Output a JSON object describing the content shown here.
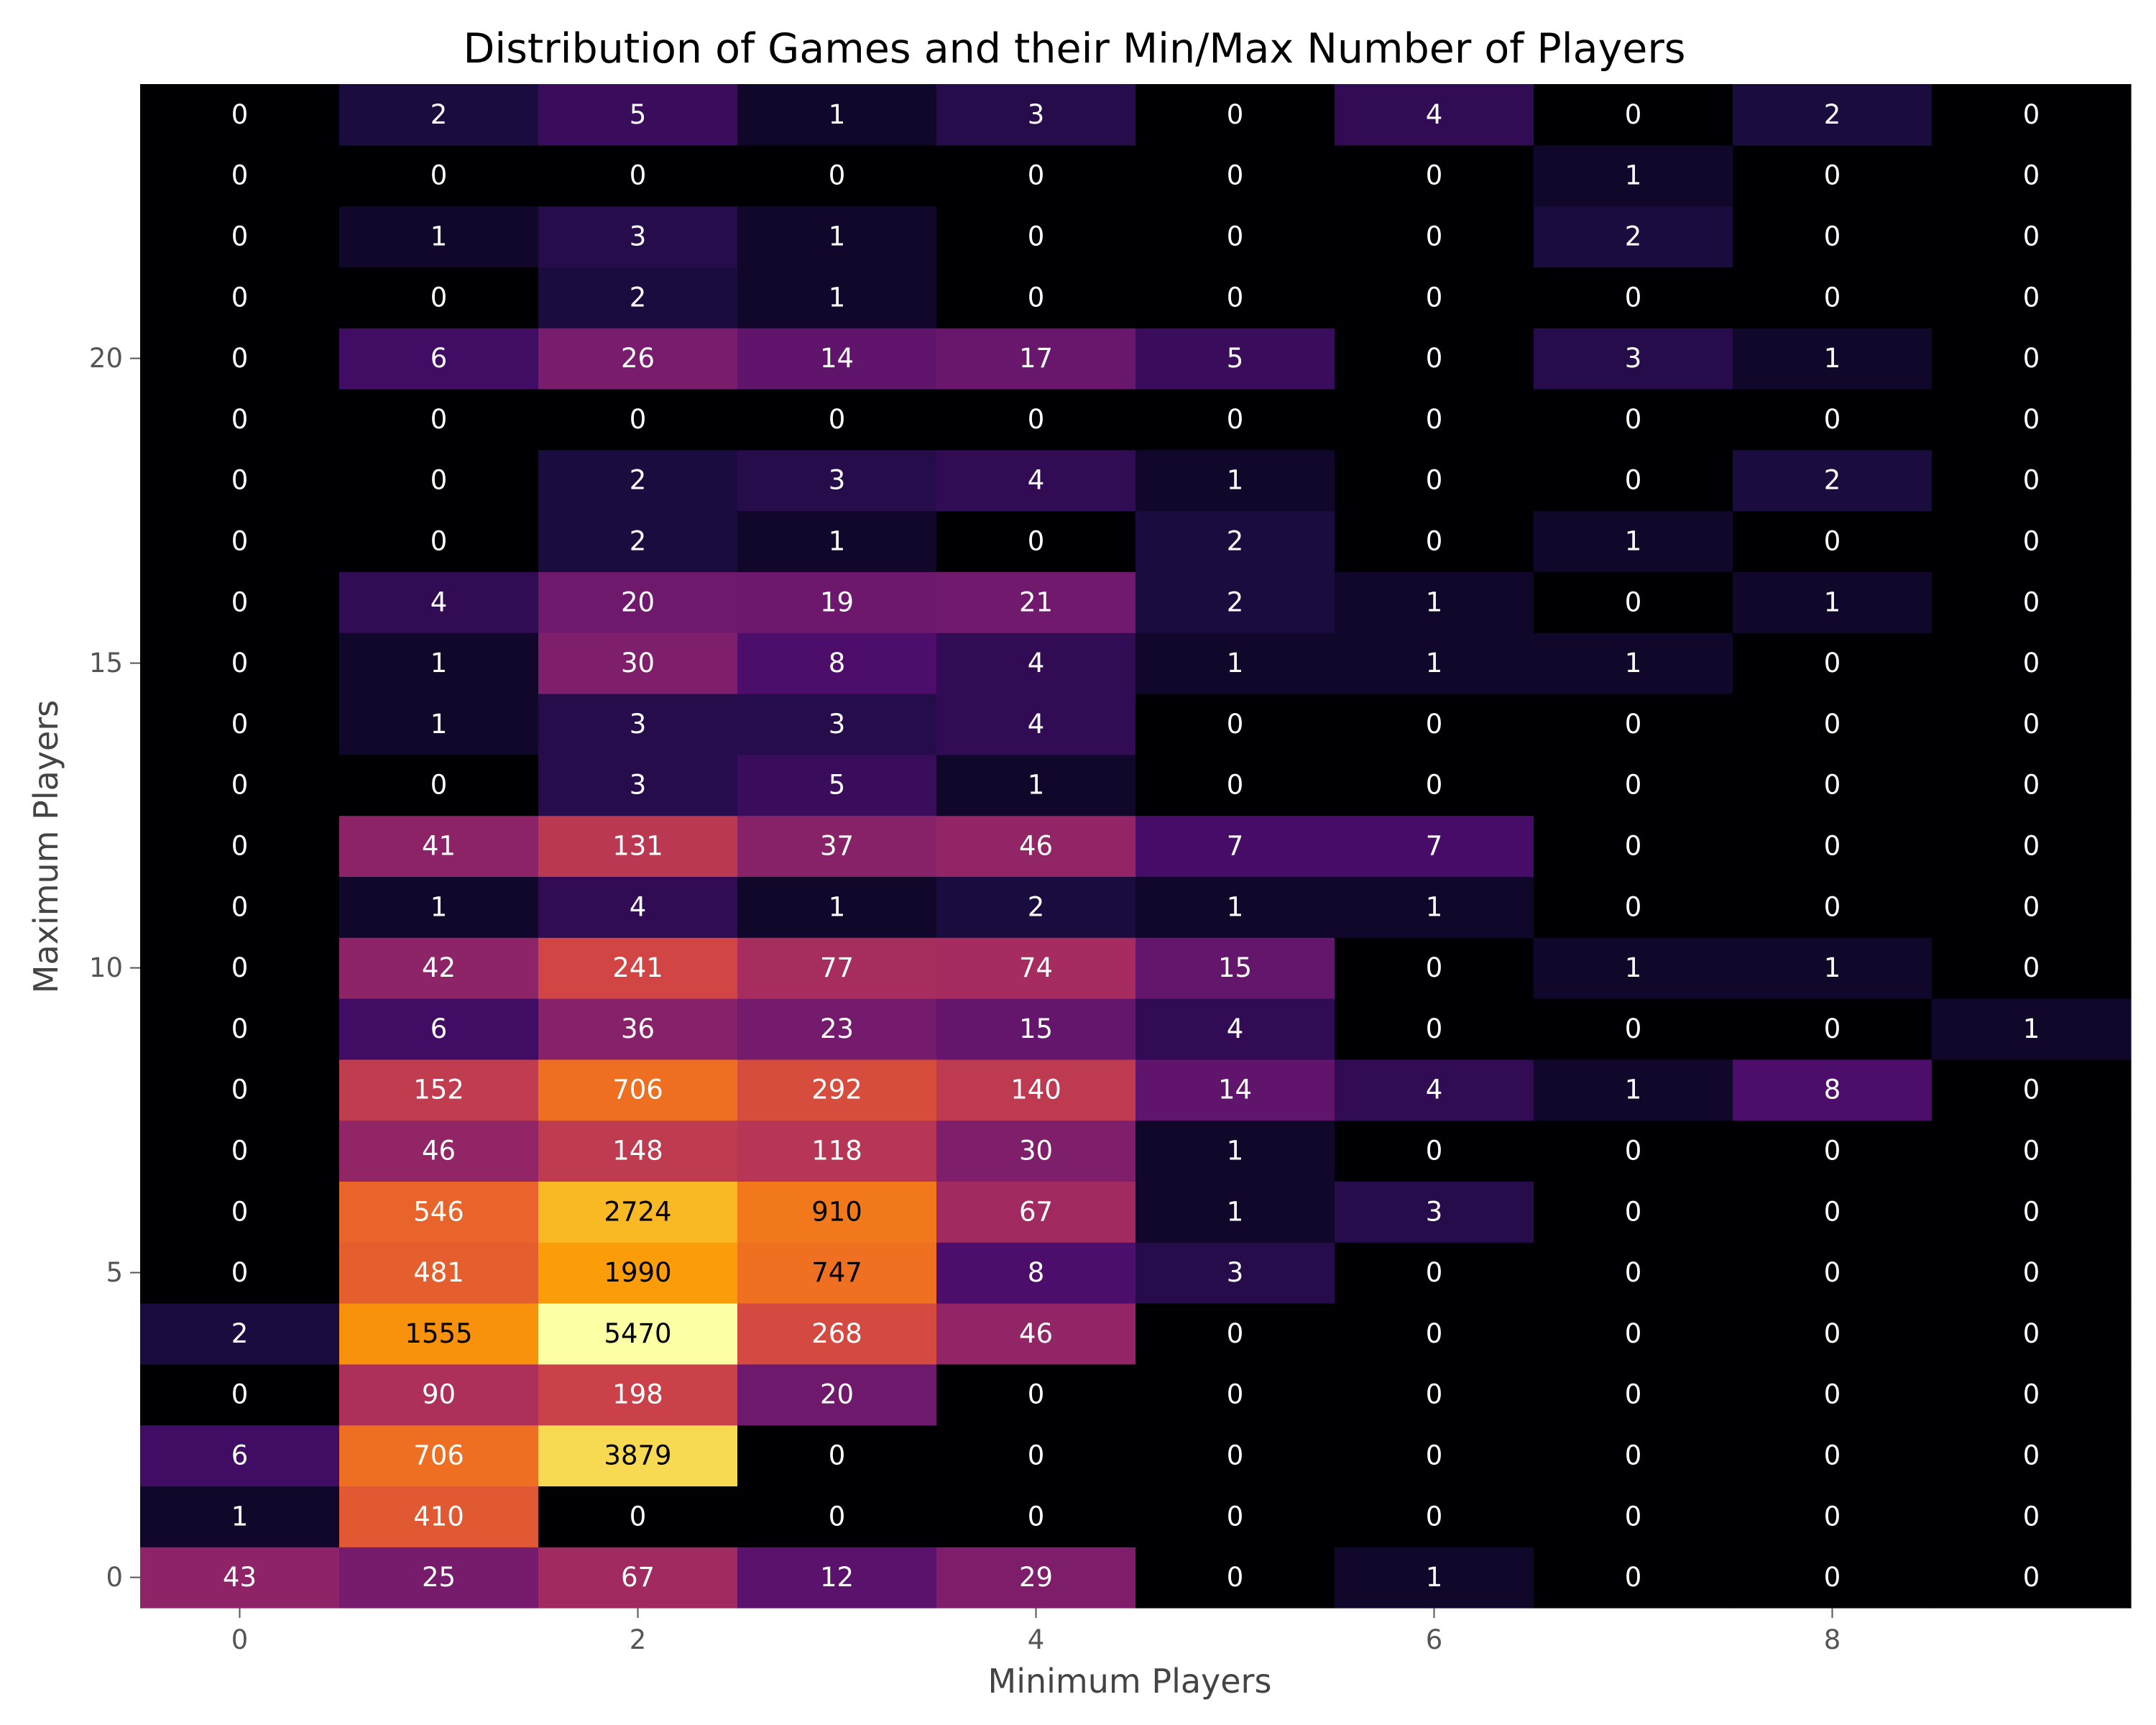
{
  "chart_data": {
    "type": "heatmap",
    "title": "Distribution of Games and their Min/Max Number of Players",
    "xlabel": "Minimum Players",
    "ylabel": "Maximum Players",
    "colormap": "inferno",
    "x_values": [
      0,
      1,
      2,
      3,
      4,
      5,
      6,
      7,
      8,
      9
    ],
    "y_values": [
      0,
      1,
      2,
      3,
      4,
      5,
      6,
      7,
      8,
      9,
      10,
      11,
      12,
      13,
      14,
      15,
      16,
      17,
      18,
      19,
      20,
      21,
      22,
      23,
      24
    ],
    "x_ticks": [
      "0",
      "2",
      "4",
      "6",
      "8"
    ],
    "y_ticks": [
      "0",
      "5",
      "10",
      "15",
      "20"
    ],
    "grid": false,
    "values": [
      [
        43,
        25,
        67,
        12,
        29,
        0,
        1,
        0,
        0,
        0
      ],
      [
        1,
        410,
        0,
        0,
        0,
        0,
        0,
        0,
        0,
        0
      ],
      [
        6,
        706,
        3879,
        0,
        0,
        0,
        0,
        0,
        0,
        0
      ],
      [
        0,
        90,
        198,
        20,
        0,
        0,
        0,
        0,
        0,
        0
      ],
      [
        2,
        1555,
        5470,
        268,
        46,
        0,
        0,
        0,
        0,
        0
      ],
      [
        0,
        481,
        1990,
        747,
        8,
        3,
        0,
        0,
        0,
        0
      ],
      [
        0,
        546,
        2724,
        910,
        67,
        1,
        3,
        0,
        0,
        0
      ],
      [
        0,
        46,
        148,
        118,
        30,
        1,
        0,
        0,
        0,
        0
      ],
      [
        0,
        152,
        706,
        292,
        140,
        14,
        4,
        1,
        8,
        0
      ],
      [
        0,
        6,
        36,
        23,
        15,
        4,
        0,
        0,
        0,
        1
      ],
      [
        0,
        42,
        241,
        77,
        74,
        15,
        0,
        1,
        1,
        0
      ],
      [
        0,
        1,
        4,
        1,
        2,
        1,
        1,
        0,
        0,
        0
      ],
      [
        0,
        41,
        131,
        37,
        46,
        7,
        7,
        0,
        0,
        0
      ],
      [
        0,
        0,
        3,
        5,
        1,
        0,
        0,
        0,
        0,
        0
      ],
      [
        0,
        1,
        3,
        3,
        4,
        0,
        0,
        0,
        0,
        0
      ],
      [
        0,
        1,
        30,
        8,
        4,
        1,
        1,
        1,
        0,
        0
      ],
      [
        0,
        4,
        20,
        19,
        21,
        2,
        1,
        0,
        1,
        0
      ],
      [
        0,
        0,
        2,
        1,
        0,
        2,
        0,
        1,
        0,
        0
      ],
      [
        0,
        0,
        2,
        3,
        4,
        1,
        0,
        0,
        2,
        0
      ],
      [
        0,
        0,
        0,
        0,
        0,
        0,
        0,
        0,
        0,
        0
      ],
      [
        0,
        6,
        26,
        14,
        17,
        5,
        0,
        3,
        1,
        0
      ],
      [
        0,
        0,
        2,
        1,
        0,
        0,
        0,
        0,
        0,
        0
      ],
      [
        0,
        1,
        3,
        1,
        0,
        0,
        0,
        2,
        0,
        0
      ],
      [
        0,
        0,
        0,
        0,
        0,
        0,
        0,
        1,
        0,
        0
      ],
      [
        0,
        2,
        5,
        1,
        3,
        0,
        4,
        0,
        2,
        0
      ]
    ]
  }
}
